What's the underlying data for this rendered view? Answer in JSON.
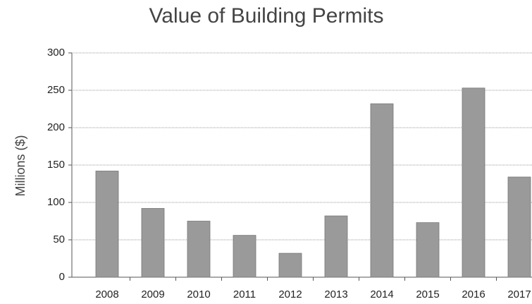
{
  "chart_data": {
    "type": "bar",
    "title": "Value of Building Permits",
    "y_label": "Millions ($)",
    "categories": [
      "2008",
      "2009",
      "2010",
      "2011",
      "2012",
      "2013",
      "2014",
      "2015",
      "2016",
      "2017"
    ],
    "values": [
      142,
      92,
      75,
      56,
      32,
      82,
      232,
      73,
      253,
      134
    ],
    "color": "#9a9a9a",
    "ylim": [
      0,
      300
    ],
    "yticks": [
      0,
      50,
      100,
      150,
      200,
      250,
      300
    ],
    "grid": true
  }
}
